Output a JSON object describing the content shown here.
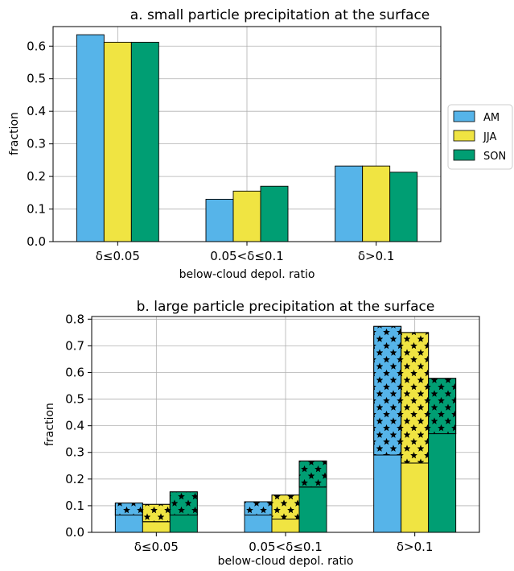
{
  "colors": {
    "AM": "#56b4e9",
    "JJA": "#f0e442",
    "SON": "#009e73",
    "stars": "#000000"
  },
  "chart_data": [
    {
      "type": "bar",
      "title": "a. small particle precipitation at the surface",
      "xlabel": "below-cloud depol. ratio",
      "ylabel": "fraction",
      "categories": [
        "δ≤0.05",
        "0.05<δ≤0.1",
        "δ>0.1"
      ],
      "ylim": [
        0,
        0.66
      ],
      "yticks": [
        "0.0",
        "0.1",
        "0.2",
        "0.3",
        "0.4",
        "0.5",
        "0.6"
      ],
      "grid": true,
      "legend": "right",
      "series": [
        {
          "name": "AM",
          "values": [
            0.635,
            0.13,
            0.232
          ]
        },
        {
          "name": "JJA",
          "values": [
            0.612,
            0.155,
            0.232
          ]
        },
        {
          "name": "SON",
          "values": [
            0.612,
            0.17,
            0.213
          ]
        }
      ]
    },
    {
      "type": "bar",
      "stacked": true,
      "title": "b. large particle precipitation at the surface",
      "xlabel": "below-cloud depol. ratio",
      "ylabel": "fraction",
      "categories": [
        "δ≤0.05",
        "0.05<δ≤0.1",
        "δ>0.1"
      ],
      "ylim": [
        0,
        0.81
      ],
      "yticks": [
        "0.0",
        "0.1",
        "0.2",
        "0.3",
        "0.4",
        "0.5",
        "0.6",
        "0.7",
        "0.8"
      ],
      "grid": true,
      "series": [
        {
          "name": "AM",
          "base": [
            0.065,
            0.065,
            0.29
          ],
          "total": [
            0.11,
            0.115,
            0.773
          ]
        },
        {
          "name": "JJA",
          "base": [
            0.04,
            0.05,
            0.26
          ],
          "total": [
            0.105,
            0.14,
            0.75
          ]
        },
        {
          "name": "SON",
          "base": [
            0.065,
            0.17,
            0.37
          ],
          "total": [
            0.152,
            0.268,
            0.578
          ]
        }
      ]
    }
  ]
}
